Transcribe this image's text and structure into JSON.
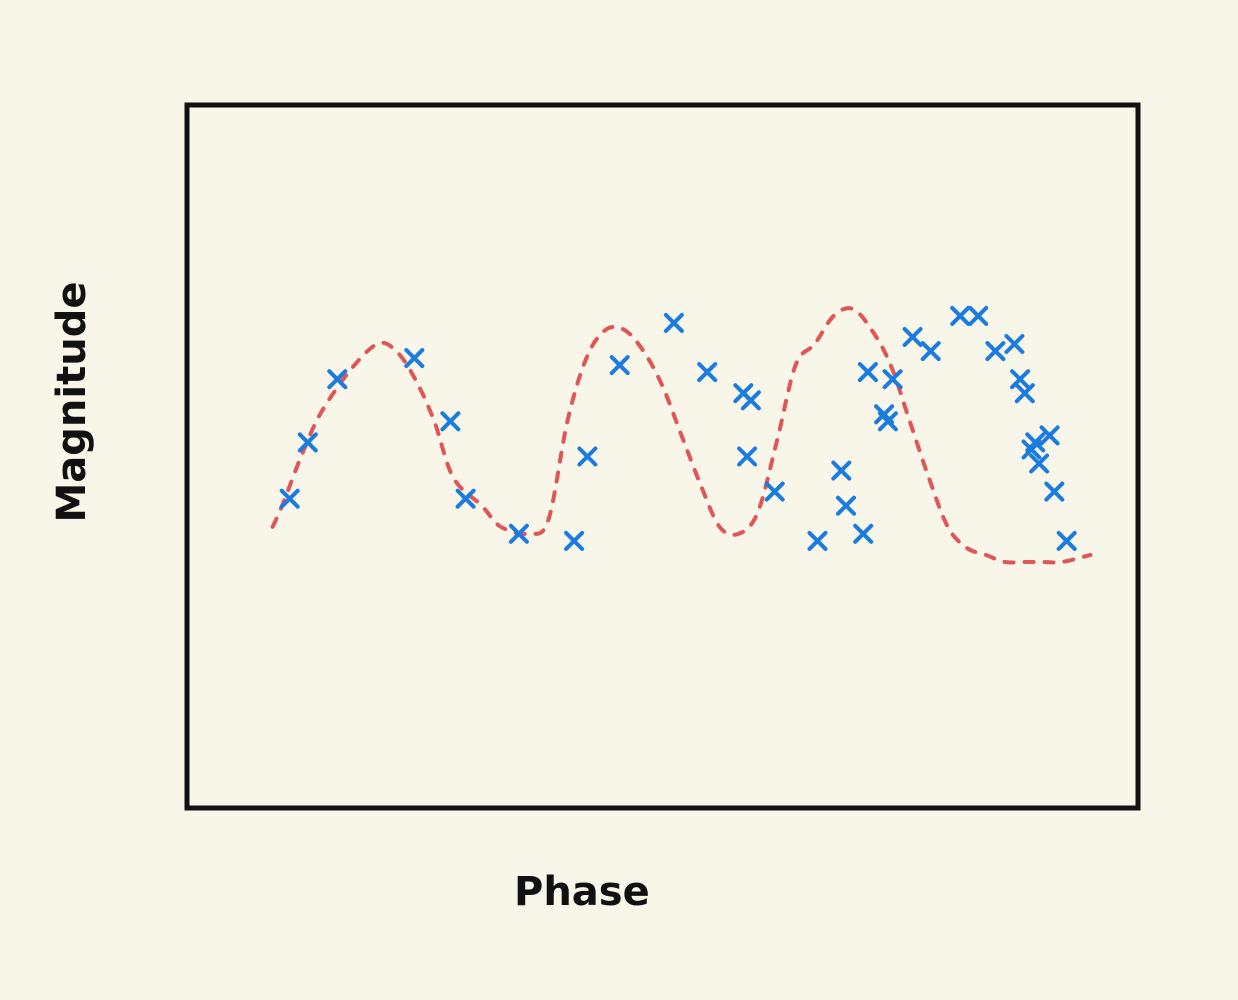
{
  "chart_data": {
    "type": "scatter",
    "title": "",
    "xlabel": "Phase",
    "ylabel": "Magnitude",
    "xlim": [
      0,
      1
    ],
    "ylim": [
      0,
      1
    ],
    "grid": false,
    "legend": "none",
    "series": [
      {
        "kind": "line",
        "style": "dashed",
        "color": "#e05555",
        "x": [
          0.09,
          0.1,
          0.12,
          0.14,
          0.17,
          0.2,
          0.22,
          0.24,
          0.26,
          0.28,
          0.31,
          0.33,
          0.36,
          0.38,
          0.4,
          0.42,
          0.44,
          0.46,
          0.48,
          0.5,
          0.52,
          0.54,
          0.56,
          0.58,
          0.6,
          0.62,
          0.64,
          0.66,
          0.68,
          0.7,
          0.72,
          0.74,
          0.76,
          0.78,
          0.8,
          0.82,
          0.84,
          0.86,
          0.88,
          0.9,
          0.92,
          0.95
        ],
        "y": [
          0.4,
          0.43,
          0.5,
          0.56,
          0.62,
          0.66,
          0.65,
          0.61,
          0.55,
          0.47,
          0.43,
          0.4,
          0.39,
          0.41,
          0.55,
          0.64,
          0.68,
          0.68,
          0.65,
          0.6,
          0.53,
          0.46,
          0.4,
          0.39,
          0.42,
          0.52,
          0.63,
          0.66,
          0.7,
          0.71,
          0.68,
          0.63,
          0.55,
          0.47,
          0.4,
          0.37,
          0.36,
          0.35,
          0.35,
          0.35,
          0.35,
          0.36
        ]
      },
      {
        "kind": "points",
        "marker": "x",
        "color": "#1a7be0",
        "x": [
          0.108,
          0.127,
          0.158,
          0.239,
          0.277,
          0.293,
          0.349,
          0.407,
          0.421,
          0.455,
          0.512,
          0.547,
          0.585,
          0.593,
          0.589,
          0.618,
          0.663,
          0.688,
          0.693,
          0.711,
          0.716,
          0.737,
          0.733,
          0.742,
          0.763,
          0.782,
          0.813,
          0.832,
          0.85,
          0.87,
          0.876,
          0.881,
          0.888,
          0.892,
          0.896,
          0.907,
          0.912,
          0.925
        ],
        "y": [
          0.44,
          0.52,
          0.61,
          0.64,
          0.55,
          0.44,
          0.39,
          0.38,
          0.5,
          0.63,
          0.69,
          0.62,
          0.59,
          0.58,
          0.5,
          0.45,
          0.38,
          0.48,
          0.43,
          0.39,
          0.62,
          0.55,
          0.56,
          0.61,
          0.67,
          0.65,
          0.7,
          0.7,
          0.65,
          0.66,
          0.61,
          0.59,
          0.51,
          0.52,
          0.49,
          0.53,
          0.45,
          0.38
        ]
      }
    ]
  }
}
